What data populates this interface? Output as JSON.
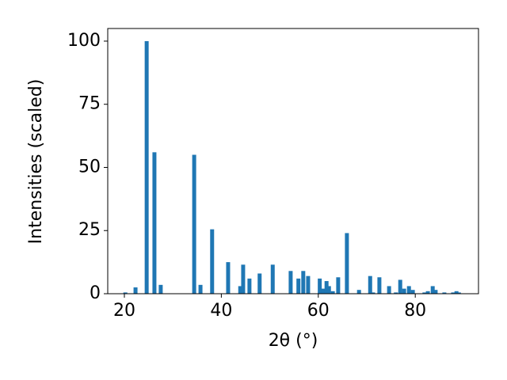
{
  "chart_data": {
    "type": "bar",
    "x": [
      20.2,
      22.3,
      24.6,
      26.2,
      27.5,
      34.4,
      35.7,
      38.1,
      41.4,
      43.9,
      44.5,
      45.8,
      47.9,
      50.6,
      54.3,
      55.9,
      56.9,
      57.9,
      60.3,
      61.0,
      61.7,
      62.2,
      63.0,
      64.1,
      65.9,
      68.4,
      70.7,
      71.3,
      72.6,
      74.6,
      76.0,
      76.9,
      77.7,
      78.7,
      79.5,
      81.9,
      82.6,
      83.6,
      84.2,
      86.0,
      87.8,
      88.5,
      89.0
    ],
    "values": [
      0.5,
      2.5,
      100,
      56,
      3.5,
      55,
      3.5,
      25.5,
      12.5,
      3,
      11.5,
      6,
      8,
      11.5,
      9,
      6,
      9,
      7,
      6,
      2,
      5,
      3,
      1,
      6.5,
      24,
      1.5,
      7,
      0.5,
      6.5,
      3,
      0.5,
      5.5,
      2,
      3,
      1.5,
      0.5,
      1,
      3,
      1.5,
      0.5,
      0.5,
      1,
      0.5
    ],
    "color": "#1f77b4",
    "x_label": "2θ (°)",
    "y_label": "Intensities (scaled)",
    "xlim": [
      16.57,
      93.04
    ],
    "xticks": [
      20,
      40,
      60,
      80
    ],
    "ylim": [
      0,
      105
    ],
    "yticks": [
      0,
      25,
      50,
      75,
      100
    ]
  }
}
